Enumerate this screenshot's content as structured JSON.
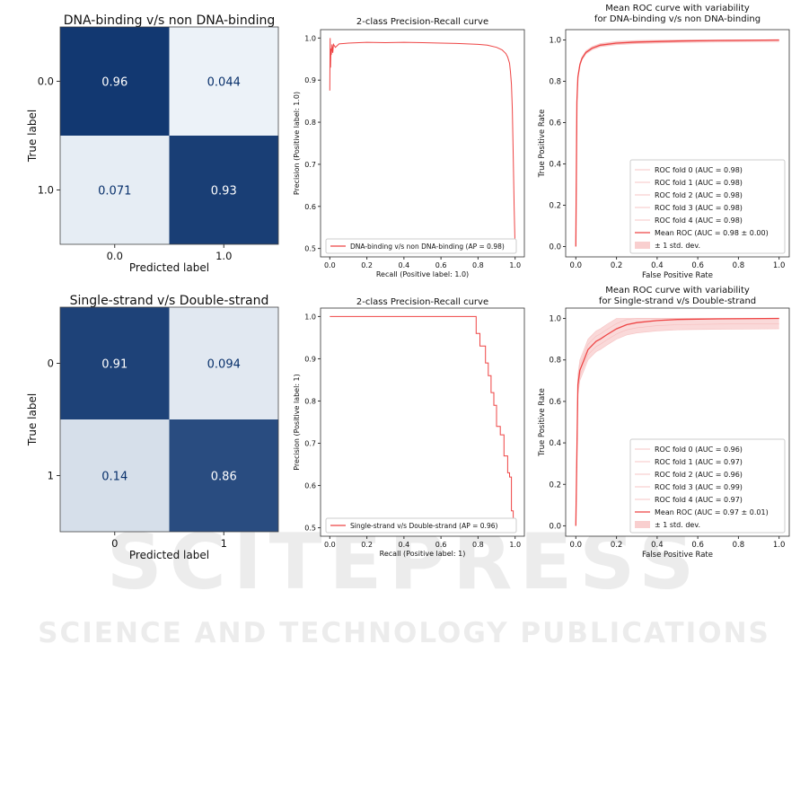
{
  "watermark": {
    "line1": "SCITEPRESS",
    "line2": "SCIENCE AND TECHNOLOGY PUBLICATIONS"
  },
  "colors": {
    "curve": "#ee4444",
    "band": "#f9cfcf",
    "cm_dark": "#08306b",
    "cm_light": "#f7fbff"
  },
  "chart_data": [
    {
      "type": "heatmap",
      "title": "DNA-binding v/s non DNA-binding",
      "xlabel": "Predicted label",
      "ylabel": "True label",
      "x_ticks": [
        "0.0",
        "1.0"
      ],
      "y_ticks": [
        "0.0",
        "1.0"
      ],
      "cells": [
        [
          "0.96",
          "0.044"
        ],
        [
          "0.071",
          "0.93"
        ]
      ],
      "values": [
        [
          0.96,
          0.044
        ],
        [
          0.071,
          0.93
        ]
      ]
    },
    {
      "type": "line",
      "title": "2-class Precision-Recall curve",
      "xlabel": "Recall (Positive label: 1.0)",
      "ylabel": "Precision (Positive label: 1.0)",
      "xlim": [
        -0.05,
        1.05
      ],
      "ylim": [
        0.48,
        1.02
      ],
      "x_ticks": [
        "0.0",
        "0.2",
        "0.4",
        "0.6",
        "0.8",
        "1.0"
      ],
      "y_ticks": [
        "0.5",
        "0.6",
        "0.7",
        "0.8",
        "0.9",
        "1.0"
      ],
      "legend": "lower-left",
      "series": [
        {
          "name": "DNA-binding v/s non DNA-binding (AP = 0.98)",
          "x": [
            0,
            0.002,
            0.004,
            0.006,
            0.008,
            0.012,
            0.016,
            0.02,
            0.03,
            0.05,
            0.1,
            0.2,
            0.3,
            0.4,
            0.5,
            0.6,
            0.7,
            0.8,
            0.85,
            0.9,
            0.93,
            0.95,
            0.96,
            0.97,
            0.975,
            0.98,
            0.985,
            0.99,
            0.995,
            1.0
          ],
          "y": [
            0.875,
            1.0,
            0.93,
            0.975,
            0.96,
            0.985,
            0.965,
            0.985,
            0.978,
            0.986,
            0.988,
            0.99,
            0.989,
            0.99,
            0.989,
            0.988,
            0.987,
            0.985,
            0.983,
            0.978,
            0.972,
            0.963,
            0.955,
            0.94,
            0.92,
            0.89,
            0.83,
            0.72,
            0.6,
            0.5
          ]
        }
      ]
    },
    {
      "type": "line",
      "title": "Mean ROC curve with variability",
      "subtitle": "for DNA-binding v/s non DNA-binding",
      "xlabel": "False Positive Rate",
      "ylabel": "True Positive Rate",
      "xlim": [
        -0.05,
        1.05
      ],
      "ylim": [
        -0.05,
        1.05
      ],
      "x_ticks": [
        "0.0",
        "0.2",
        "0.4",
        "0.6",
        "0.8",
        "1.0"
      ],
      "y_ticks": [
        "0.0",
        "0.2",
        "0.4",
        "0.6",
        "0.8",
        "1.0"
      ],
      "legend": "lower-right",
      "folds": [
        "ROC fold 0 (AUC = 0.98)",
        "ROC fold 1 (AUC = 0.98)",
        "ROC fold 2 (AUC = 0.98)",
        "ROC fold 3 (AUC = 0.98)",
        "ROC fold 4 (AUC = 0.98)"
      ],
      "mean_label": "Mean ROC (AUC = 0.98 ± 0.00)",
      "band_label": "± 1 std. dev.",
      "mean": {
        "x": [
          0,
          0.005,
          0.01,
          0.02,
          0.03,
          0.05,
          0.08,
          0.12,
          0.2,
          0.3,
          0.5,
          0.7,
          1.0
        ],
        "y": [
          0,
          0.7,
          0.82,
          0.88,
          0.91,
          0.94,
          0.96,
          0.975,
          0.985,
          0.99,
          0.995,
          0.998,
          1.0
        ]
      },
      "std": 0.008
    },
    {
      "type": "heatmap",
      "title": "Single-strand v/s Double-strand",
      "xlabel": "Predicted label",
      "ylabel": "True label",
      "x_ticks": [
        "0",
        "1"
      ],
      "y_ticks": [
        "0",
        "1"
      ],
      "cells": [
        [
          "0.91",
          "0.094"
        ],
        [
          "0.14",
          "0.86"
        ]
      ],
      "values": [
        [
          0.91,
          0.094
        ],
        [
          0.14,
          0.86
        ]
      ]
    },
    {
      "type": "line",
      "title": "2-class Precision-Recall curve",
      "xlabel": "Recall (Positive label: 1)",
      "ylabel": "Precision (Positive label: 1)",
      "xlim": [
        -0.05,
        1.05
      ],
      "ylim": [
        0.48,
        1.02
      ],
      "x_ticks": [
        "0.0",
        "0.2",
        "0.4",
        "0.6",
        "0.8",
        "1.0"
      ],
      "y_ticks": [
        "0.5",
        "0.6",
        "0.7",
        "0.8",
        "0.9",
        "1.0"
      ],
      "legend": "lower-left",
      "series": [
        {
          "name": "Single-strand v/s Double-strand (AP = 0.96)",
          "x": [
            0,
            0.79,
            0.79,
            0.81,
            0.81,
            0.84,
            0.84,
            0.855,
            0.855,
            0.87,
            0.87,
            0.885,
            0.885,
            0.9,
            0.9,
            0.92,
            0.92,
            0.94,
            0.94,
            0.96,
            0.96,
            0.97,
            0.97,
            0.98,
            0.98,
            0.99,
            0.99,
            1.0
          ],
          "y": [
            1.0,
            1.0,
            0.96,
            0.96,
            0.93,
            0.93,
            0.89,
            0.89,
            0.86,
            0.86,
            0.82,
            0.82,
            0.79,
            0.79,
            0.74,
            0.74,
            0.72,
            0.72,
            0.67,
            0.67,
            0.63,
            0.63,
            0.62,
            0.62,
            0.54,
            0.54,
            0.5,
            0.5
          ]
        }
      ]
    },
    {
      "type": "line",
      "title": "Mean ROC curve with variability",
      "subtitle": "for Single-strand v/s Double-strand",
      "xlabel": "False Positive Rate",
      "ylabel": "True Positive Rate",
      "xlim": [
        -0.05,
        1.05
      ],
      "ylim": [
        -0.05,
        1.05
      ],
      "x_ticks": [
        "0.0",
        "0.2",
        "0.4",
        "0.6",
        "0.8",
        "1.0"
      ],
      "y_ticks": [
        "0.0",
        "0.2",
        "0.4",
        "0.6",
        "0.8",
        "1.0"
      ],
      "legend": "lower-right",
      "folds": [
        "ROC fold 0 (AUC = 0.96)",
        "ROC fold 1 (AUC = 0.97)",
        "ROC fold 2 (AUC = 0.96)",
        "ROC fold 3 (AUC = 0.99)",
        "ROC fold 4 (AUC = 0.97)"
      ],
      "mean_label": "Mean ROC (AUC = 0.97 ± 0.01)",
      "band_label": "± 1 std. dev.",
      "mean": {
        "x": [
          0,
          0.01,
          0.02,
          0.04,
          0.06,
          0.08,
          0.1,
          0.12,
          0.15,
          0.2,
          0.25,
          0.3,
          0.4,
          0.5,
          0.7,
          1.0
        ],
        "y": [
          0,
          0.68,
          0.75,
          0.8,
          0.85,
          0.87,
          0.89,
          0.9,
          0.92,
          0.95,
          0.97,
          0.98,
          0.99,
          0.995,
          0.998,
          1.0
        ]
      },
      "std": 0.05
    }
  ]
}
